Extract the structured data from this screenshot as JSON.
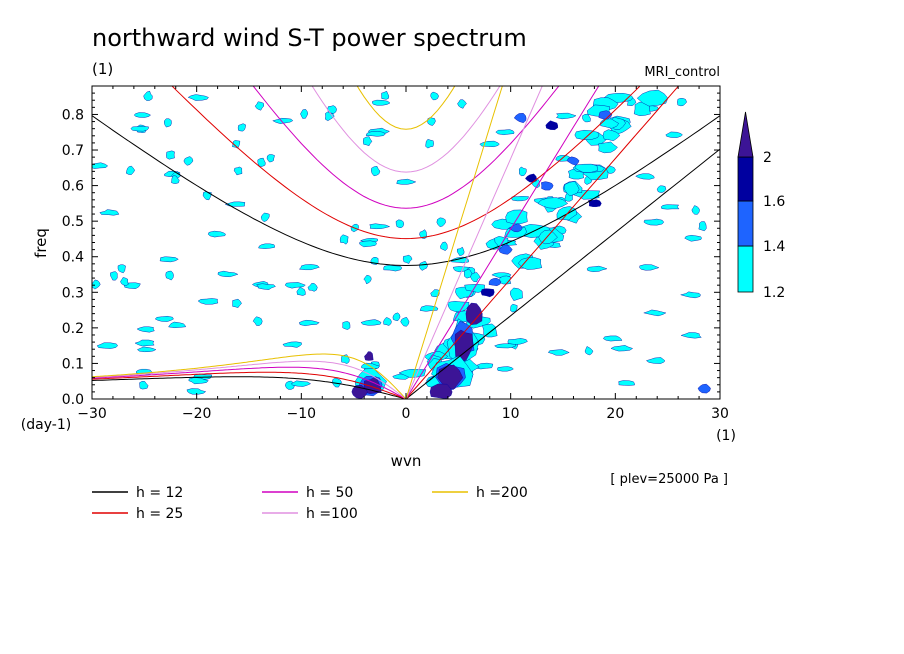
{
  "chart_data": {
    "type": "heatmap",
    "title": "northward wind S-T power spectrum",
    "subtitle_left": "(1)",
    "subtitle_right": "MRI_control",
    "xlabel": "wvn",
    "ylabel": "freq",
    "x_unit": "(1)",
    "y_unit": "(day-1)",
    "annotation": "[ plev=25000 Pa ]",
    "xlim": [
      -30,
      30
    ],
    "ylim": [
      0,
      0.88
    ],
    "x_ticks": [
      -30,
      -20,
      -10,
      0,
      10,
      20,
      30
    ],
    "x_tick_labels": [
      "-30",
      "-20",
      "-10",
      "0",
      "10",
      "20",
      "30"
    ],
    "y_ticks": [
      0,
      0.1,
      0.2,
      0.3,
      0.4,
      0.5,
      0.6,
      0.7,
      0.8
    ],
    "y_tick_labels": [
      "0.0",
      "0.1",
      "0.2",
      "0.3",
      "0.4",
      "0.5",
      "0.6",
      "0.7",
      "0.8"
    ],
    "colorbar": {
      "levels": [
        1.2,
        1.4,
        1.6,
        2
      ],
      "labels": [
        "1.2",
        "1.4",
        "1.6",
        "2"
      ],
      "colors": [
        "#00ffff",
        "#1e64ff",
        "#0000a0",
        "#3c1496"
      ]
    },
    "dispersion_curves": [
      {
        "label": "h = 12",
        "h": 12,
        "color": "#000000"
      },
      {
        "label": "h = 25",
        "h": 25,
        "color": "#e00000"
      },
      {
        "label": "h = 50",
        "h": 50,
        "color": "#d000c0"
      },
      {
        "label": "h =100",
        "h": 100,
        "color": "#e090e0"
      },
      {
        "label": "h =200",
        "h": 200,
        "color": "#e8c000"
      }
    ],
    "spectral_peaks": [
      {
        "k": 5.5,
        "f": 0.16,
        "level": 2
      },
      {
        "k": 4.5,
        "f": 0.06,
        "level": 2
      },
      {
        "k": -3.5,
        "f": 0.04,
        "level": 2
      },
      {
        "k": 9.5,
        "f": 0.42,
        "level": 1.6
      },
      {
        "k": 12,
        "f": 0.62,
        "level": 1.6
      },
      {
        "k": 18,
        "f": 0.55,
        "level": 1.6
      }
    ]
  }
}
